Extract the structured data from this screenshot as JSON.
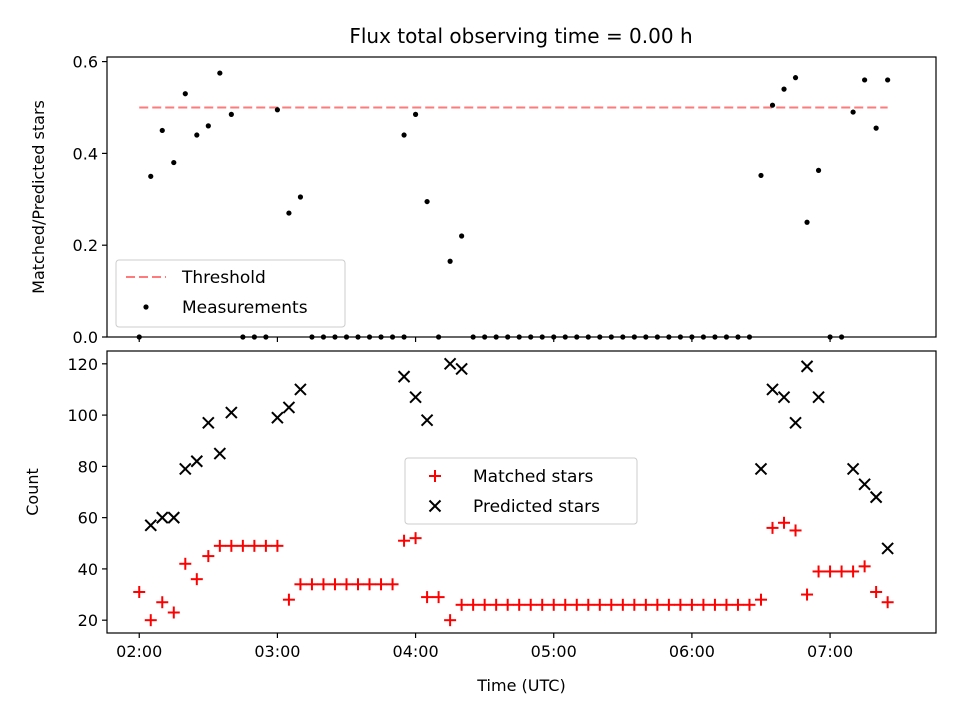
{
  "title": "Flux total observing time = 0.00 h",
  "chart_data": [
    {
      "type": "scatter",
      "ylabel": "Matched/Predicted stars",
      "xlabel": "",
      "xlim": [
        "01:46",
        "07:46"
      ],
      "ylim": [
        0,
        0.61
      ],
      "yticks": [
        {
          "value": 0.0,
          "label": "0.0"
        },
        {
          "value": 0.2,
          "label": "0.2"
        },
        {
          "value": 0.4,
          "label": "0.4"
        },
        {
          "value": 0.6,
          "label": "0.6"
        }
      ],
      "xticks": [
        "02:00",
        "03:00",
        "04:00",
        "05:00",
        "06:00",
        "07:00"
      ],
      "grid": false,
      "legend_position": "lower-left",
      "threshold": {
        "name": "Threshold",
        "value": 0.5,
        "x_start": "02:00",
        "x_end": "07:25",
        "color": "#ff7a7a"
      },
      "series": [
        {
          "name": "Measurements",
          "marker": "dot",
          "color": "#000000",
          "points": [
            [
              "02:00",
              0
            ],
            [
              "02:05",
              0.35
            ],
            [
              "02:10",
              0.45
            ],
            [
              "02:15",
              0.38
            ],
            [
              "02:20",
              0.53
            ],
            [
              "02:25",
              0.44
            ],
            [
              "02:30",
              0.46
            ],
            [
              "02:35",
              0.575
            ],
            [
              "02:40",
              0.485
            ],
            [
              "02:45",
              0
            ],
            [
              "02:50",
              0
            ],
            [
              "02:55",
              0
            ],
            [
              "03:00",
              0.495
            ],
            [
              "03:05",
              0.27
            ],
            [
              "03:10",
              0.305
            ],
            [
              "03:15",
              0
            ],
            [
              "03:20",
              0
            ],
            [
              "03:25",
              0
            ],
            [
              "03:30",
              0
            ],
            [
              "03:35",
              0
            ],
            [
              "03:40",
              0
            ],
            [
              "03:45",
              0
            ],
            [
              "03:50",
              0
            ],
            [
              "03:55",
              0
            ],
            [
              "03:55",
              0.44
            ],
            [
              "04:00",
              0.485
            ],
            [
              "04:05",
              0.295
            ],
            [
              "04:10",
              0
            ],
            [
              "04:15",
              0.165
            ],
            [
              "04:20",
              0.22
            ],
            [
              "04:25",
              0
            ],
            [
              "04:30",
              0
            ],
            [
              "04:35",
              0
            ],
            [
              "04:40",
              0
            ],
            [
              "04:45",
              0
            ],
            [
              "04:50",
              0
            ],
            [
              "04:55",
              0
            ],
            [
              "05:00",
              0
            ],
            [
              "05:05",
              0
            ],
            [
              "05:10",
              0
            ],
            [
              "05:15",
              0
            ],
            [
              "05:20",
              0
            ],
            [
              "05:25",
              0
            ],
            [
              "05:30",
              0
            ],
            [
              "05:35",
              0
            ],
            [
              "05:40",
              0
            ],
            [
              "05:45",
              0
            ],
            [
              "05:50",
              0
            ],
            [
              "05:55",
              0
            ],
            [
              "06:00",
              0
            ],
            [
              "06:05",
              0
            ],
            [
              "06:10",
              0
            ],
            [
              "06:15",
              0
            ],
            [
              "06:20",
              0
            ],
            [
              "06:25",
              0
            ],
            [
              "06:30",
              0.352
            ],
            [
              "06:35",
              0.505
            ],
            [
              "06:40",
              0.54
            ],
            [
              "06:45",
              0.565
            ],
            [
              "06:50",
              0.25
            ],
            [
              "06:55",
              0.363
            ],
            [
              "07:00",
              0
            ],
            [
              "07:05",
              0
            ],
            [
              "07:10",
              0.49
            ],
            [
              "07:15",
              0.56
            ],
            [
              "07:20",
              0.455
            ],
            [
              "07:25",
              0.56
            ]
          ]
        }
      ]
    },
    {
      "type": "scatter",
      "ylabel": "Count",
      "xlabel": "Time (UTC)",
      "xlim": [
        "01:46",
        "07:46"
      ],
      "ylim": [
        15,
        125
      ],
      "yticks": [
        {
          "value": 20,
          "label": "20"
        },
        {
          "value": 40,
          "label": "40"
        },
        {
          "value": 60,
          "label": "60"
        },
        {
          "value": 80,
          "label": "80"
        },
        {
          "value": 100,
          "label": "100"
        },
        {
          "value": 120,
          "label": "120"
        }
      ],
      "xticks": [
        "02:00",
        "03:00",
        "04:00",
        "05:00",
        "06:00",
        "07:00"
      ],
      "grid": false,
      "legend_position": "center",
      "series": [
        {
          "name": "Matched stars",
          "marker": "plus",
          "color": "#ff0000",
          "points": [
            [
              "02:00",
              31
            ],
            [
              "02:05",
              20
            ],
            [
              "02:10",
              27
            ],
            [
              "02:15",
              23
            ],
            [
              "02:20",
              42
            ],
            [
              "02:25",
              36
            ],
            [
              "02:30",
              45
            ],
            [
              "02:35",
              49
            ],
            [
              "02:40",
              49
            ],
            [
              "02:45",
              49
            ],
            [
              "02:50",
              49
            ],
            [
              "02:55",
              49
            ],
            [
              "03:00",
              49
            ],
            [
              "03:05",
              28
            ],
            [
              "03:10",
              34
            ],
            [
              "03:15",
              34
            ],
            [
              "03:20",
              34
            ],
            [
              "03:25",
              34
            ],
            [
              "03:30",
              34
            ],
            [
              "03:35",
              34
            ],
            [
              "03:40",
              34
            ],
            [
              "03:45",
              34
            ],
            [
              "03:50",
              34
            ],
            [
              "03:55",
              51
            ],
            [
              "04:00",
              52
            ],
            [
              "04:05",
              29
            ],
            [
              "04:10",
              29
            ],
            [
              "04:15",
              20
            ],
            [
              "04:20",
              26
            ],
            [
              "04:25",
              26
            ],
            [
              "04:30",
              26
            ],
            [
              "04:35",
              26
            ],
            [
              "04:40",
              26
            ],
            [
              "04:45",
              26
            ],
            [
              "04:50",
              26
            ],
            [
              "04:55",
              26
            ],
            [
              "05:00",
              26
            ],
            [
              "05:05",
              26
            ],
            [
              "05:10",
              26
            ],
            [
              "05:15",
              26
            ],
            [
              "05:20",
              26
            ],
            [
              "05:25",
              26
            ],
            [
              "05:30",
              26
            ],
            [
              "05:35",
              26
            ],
            [
              "05:40",
              26
            ],
            [
              "05:45",
              26
            ],
            [
              "05:50",
              26
            ],
            [
              "05:55",
              26
            ],
            [
              "06:00",
              26
            ],
            [
              "06:05",
              26
            ],
            [
              "06:10",
              26
            ],
            [
              "06:15",
              26
            ],
            [
              "06:20",
              26
            ],
            [
              "06:25",
              26
            ],
            [
              "06:30",
              28
            ],
            [
              "06:35",
              56
            ],
            [
              "06:40",
              58
            ],
            [
              "06:45",
              55
            ],
            [
              "06:50",
              30
            ],
            [
              "06:55",
              39
            ],
            [
              "07:00",
              39
            ],
            [
              "07:05",
              39
            ],
            [
              "07:10",
              39
            ],
            [
              "07:15",
              41
            ],
            [
              "07:20",
              31
            ],
            [
              "07:25",
              27
            ]
          ]
        },
        {
          "name": "Predicted stars",
          "marker": "x",
          "color": "#000000",
          "points": [
            [
              "02:05",
              57
            ],
            [
              "02:10",
              60
            ],
            [
              "02:15",
              60
            ],
            [
              "02:20",
              79
            ],
            [
              "02:25",
              82
            ],
            [
              "02:30",
              97
            ],
            [
              "02:35",
              85
            ],
            [
              "02:40",
              101
            ],
            [
              "03:00",
              99
            ],
            [
              "03:05",
              103
            ],
            [
              "03:10",
              110
            ],
            [
              "03:55",
              115
            ],
            [
              "04:00",
              107
            ],
            [
              "04:05",
              98
            ],
            [
              "04:15",
              120
            ],
            [
              "04:20",
              118
            ],
            [
              "06:30",
              79
            ],
            [
              "06:35",
              110
            ],
            [
              "06:40",
              107
            ],
            [
              "06:45",
              97
            ],
            [
              "06:50",
              119
            ],
            [
              "06:55",
              107
            ],
            [
              "07:10",
              79
            ],
            [
              "07:15",
              73
            ],
            [
              "07:20",
              68
            ],
            [
              "07:25",
              48
            ]
          ]
        }
      ]
    }
  ]
}
